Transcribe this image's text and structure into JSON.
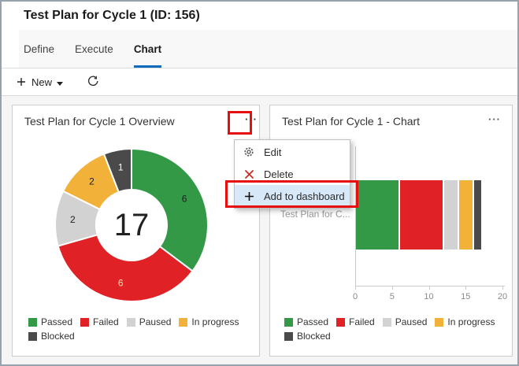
{
  "header": {
    "title": "Test Plan for Cycle 1 (ID: 156)"
  },
  "tabs": [
    {
      "label": "Define",
      "active": false
    },
    {
      "label": "Execute",
      "active": false
    },
    {
      "label": "Chart",
      "active": true
    }
  ],
  "toolbar": {
    "new_label": "New",
    "icons": [
      "plus-icon",
      "chevron-down-icon",
      "refresh-icon"
    ]
  },
  "icons": {
    "more": "···"
  },
  "context_menu": {
    "items": [
      {
        "icon": "gear-icon",
        "label": "Edit",
        "selected": false
      },
      {
        "icon": "delete-x-icon",
        "label": "Delete",
        "selected": false
      },
      {
        "icon": "plus-icon",
        "label": "Add to dashboard",
        "selected": true
      }
    ]
  },
  "legend": {
    "items": [
      {
        "label": "Passed",
        "color": "#339947"
      },
      {
        "label": "Failed",
        "color": "#e02125"
      },
      {
        "label": "Paused",
        "color": "#d2d2d2"
      },
      {
        "label": "In progress",
        "color": "#f2b138"
      },
      {
        "label": "Blocked",
        "color": "#4a4a4a"
      }
    ],
    "row_break_after": 4
  },
  "chart_data": [
    {
      "type": "pie",
      "variant": "donut",
      "title": "Test Plan for Cycle 1 Overview",
      "total": 17,
      "center_label": "17",
      "legend_position": "bottom",
      "series": [
        {
          "name": "Passed",
          "value": 6,
          "color": "#339947",
          "label_color": "#1e1e1e"
        },
        {
          "name": "Failed",
          "value": 6,
          "color": "#e02125",
          "label_color": "#f3e9c0"
        },
        {
          "name": "Paused",
          "value": 2,
          "color": "#d2d2d2",
          "label_color": "#1e1e1e"
        },
        {
          "name": "In progress",
          "value": 2,
          "color": "#f2b138",
          "label_color": "#1e1e1e"
        },
        {
          "name": "Blocked",
          "value": 1,
          "color": "#4a4a4a",
          "label_color": "#ffffff"
        }
      ]
    },
    {
      "type": "bar",
      "stacked": true,
      "orientation": "horizontal",
      "title": "Test Plan for Cycle 1 - Chart",
      "category_label": "Test Plan for C...",
      "xlim": [
        0,
        20
      ],
      "x_ticks": [
        0,
        5,
        10,
        15,
        20
      ],
      "legend_position": "bottom",
      "series": [
        {
          "name": "Passed",
          "value": 6,
          "color": "#339947"
        },
        {
          "name": "Failed",
          "value": 6,
          "color": "#e02125"
        },
        {
          "name": "Paused",
          "value": 2,
          "color": "#d2d2d2"
        },
        {
          "name": "In progress",
          "value": 2,
          "color": "#f2b138"
        },
        {
          "name": "Blocked",
          "value": 1,
          "color": "#4a4a4a"
        }
      ]
    }
  ],
  "colors": {
    "accent": "#0f6cbd",
    "annotation_red": "#e60e0e",
    "menu_selected_bg": "#d7e8f8",
    "content_bg": "#f5f5f6"
  }
}
